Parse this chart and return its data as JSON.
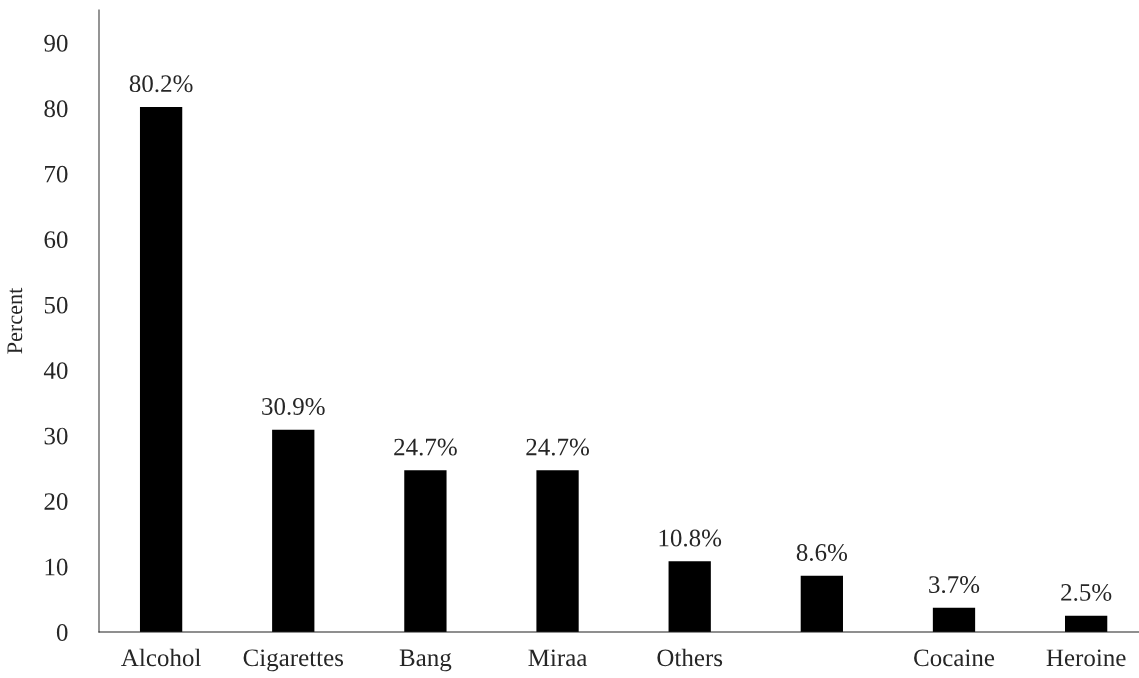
{
  "chart_data": {
    "type": "bar",
    "ylabel": "Percent",
    "categories": [
      "Alcohol",
      "Cigarettes",
      "Bang",
      "Miraa",
      "Others",
      null,
      "Cocaine",
      "Heroine"
    ],
    "values": [
      80.2,
      30.9,
      24.7,
      24.7,
      10.8,
      8.6,
      3.7,
      2.5
    ],
    "value_labels": [
      "80.2%",
      "30.9%",
      "24.7%",
      "24.7%",
      "10.8%",
      "8.6%",
      "3.7%",
      "2.5%"
    ],
    "color": "#000000",
    "ylim": [
      0,
      95
    ],
    "yticks": [
      0,
      10,
      20,
      30,
      40,
      50,
      60,
      70,
      80,
      90
    ]
  }
}
